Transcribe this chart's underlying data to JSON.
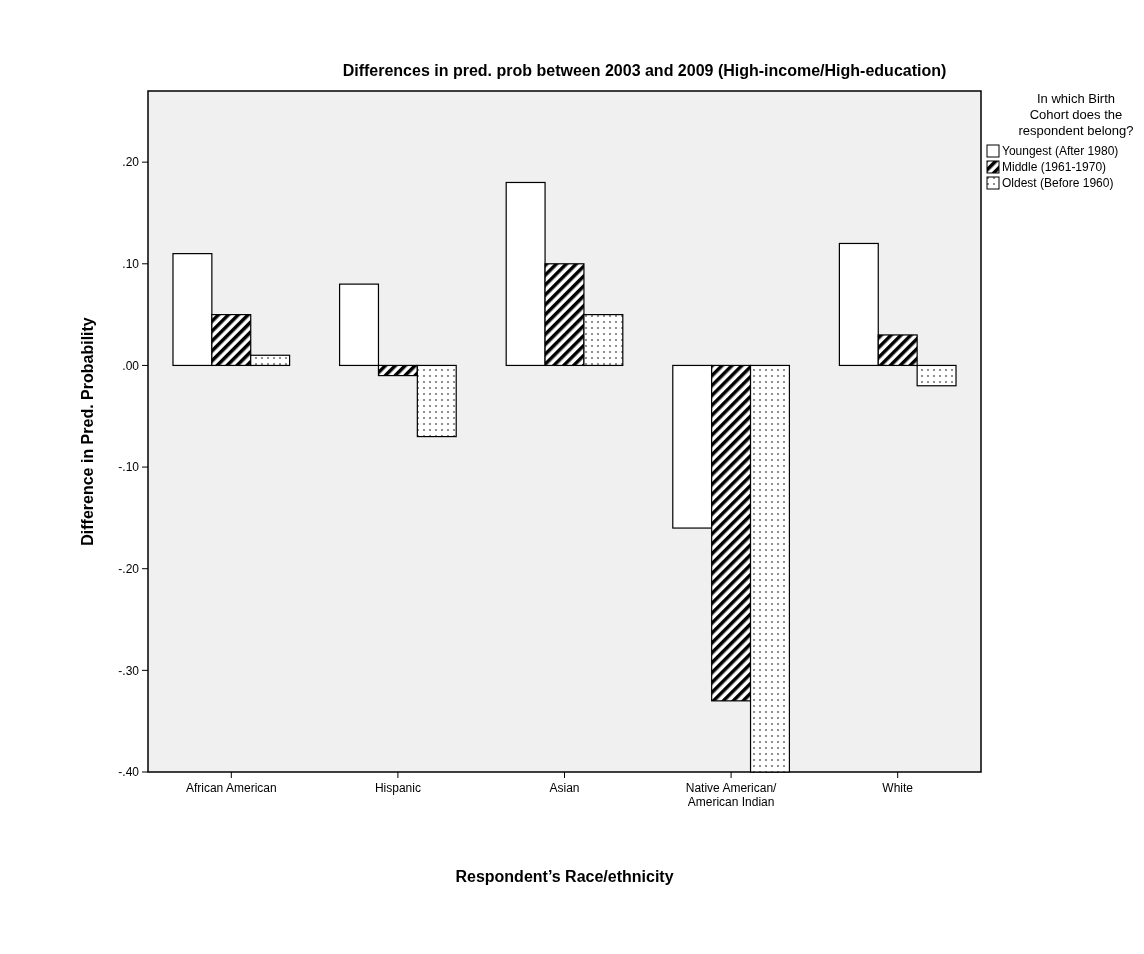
{
  "chart_data": {
    "type": "bar",
    "title": "Differences in pred. prob between 2003 and 2009 (High-income/High-education)",
    "xlabel": "Respondent’s Race/ethnicity",
    "ylabel": "Difference in Pred. Probability",
    "legend_title": "In which Birth Cohort does the respondent belong?",
    "legend": "top right",
    "categories": [
      "African American",
      "Hispanic",
      "Asian",
      "Native American/American Indian",
      "White"
    ],
    "series": [
      {
        "name": "Youngest (After 1980)",
        "color": "#ffffff",
        "values": [
          0.11,
          0.08,
          0.18,
          -0.16,
          0.12
        ]
      },
      {
        "name": "Middle (1961-1970)",
        "color": "#000000",
        "values": [
          0.05,
          -0.01,
          0.1,
          -0.33,
          0.03
        ]
      },
      {
        "name": "Oldest (Before 1960)",
        "color": "#000000",
        "values": [
          0.01,
          -0.07,
          0.05,
          -0.4,
          -0.02
        ]
      }
    ],
    "ylim": [
      -0.4,
      0.27
    ],
    "yticks": [
      {
        "value": -0.4,
        "label": "-.40"
      },
      {
        "value": -0.3,
        "label": "-.30"
      },
      {
        "value": -0.2,
        "label": "-.20"
      },
      {
        "value": -0.1,
        "label": "-.10"
      },
      {
        "value": 0,
        "label": ".00"
      },
      {
        "value": 0.1,
        "label": ".10"
      },
      {
        "value": 0.2,
        "label": ".20"
      }
    ]
  }
}
